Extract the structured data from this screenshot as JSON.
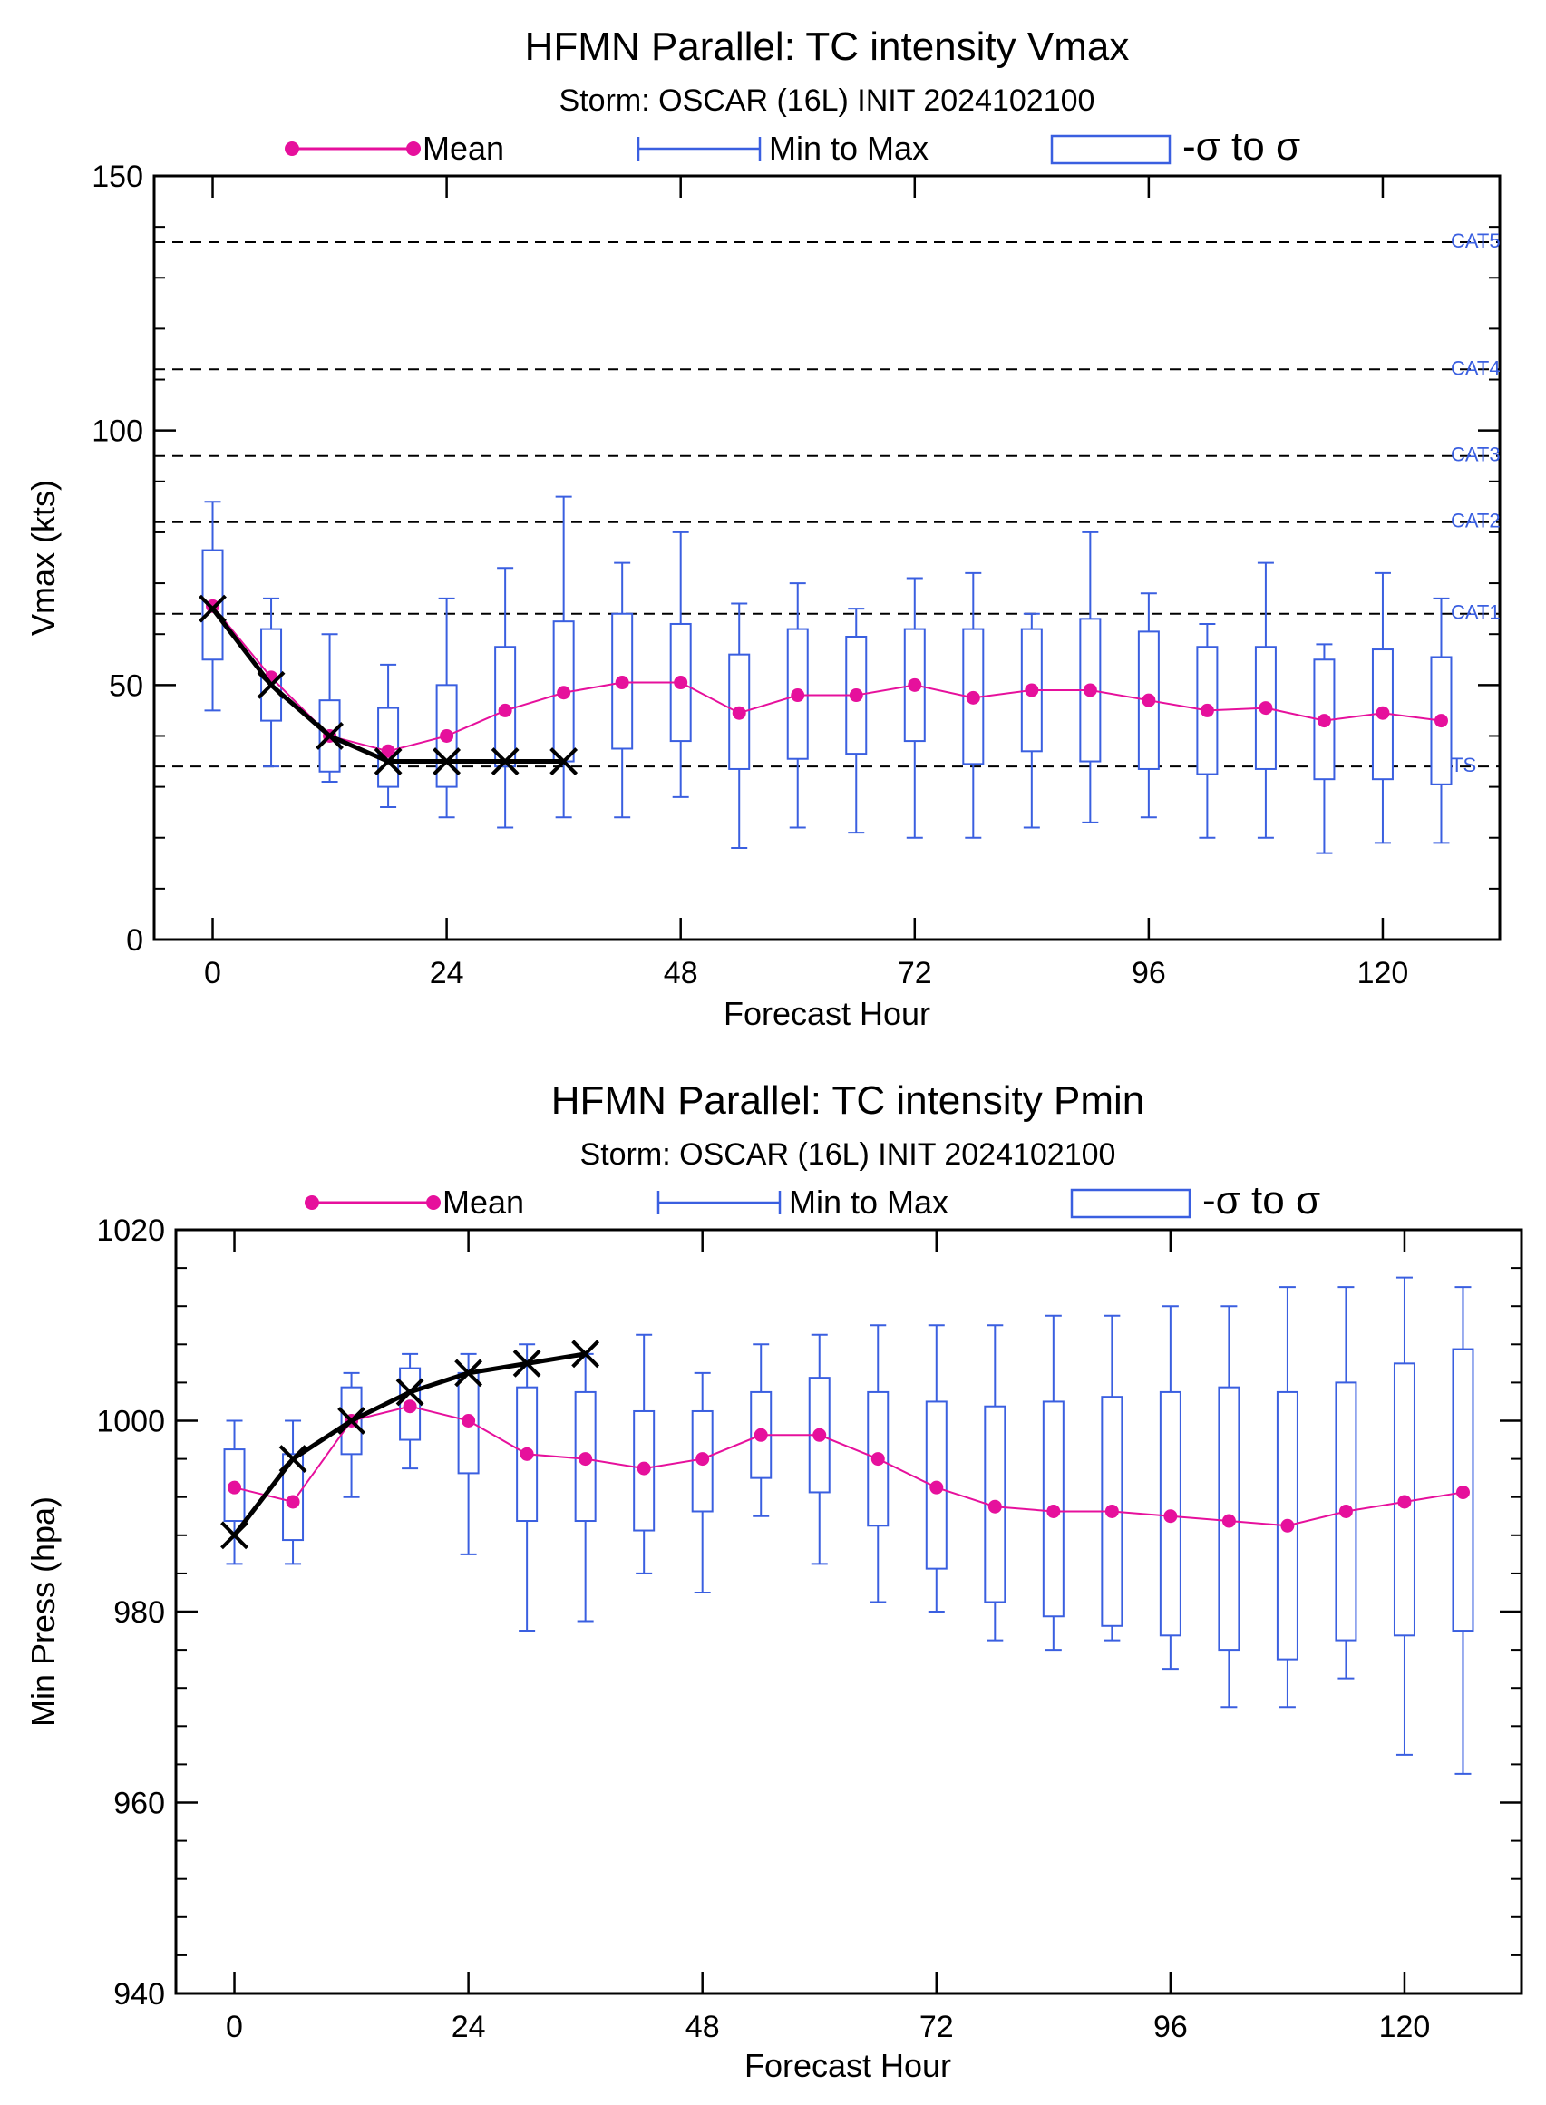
{
  "legend": {
    "mean": "Mean",
    "minmax": "Min to Max",
    "sigma": "-σ to σ"
  },
  "colors": {
    "mean": "#e6109c",
    "box": "#3a5fe0",
    "obs": "#000000",
    "category_text": "#3a5fe0"
  },
  "chart_data": [
    {
      "type": "box",
      "title": "HFMN Parallel: TC intensity Vmax",
      "subtitle": "Storm: OSCAR (16L) INIT 2024102100",
      "xlabel": "Forecast Hour",
      "ylabel": "Vmax (kts)",
      "xlim": [
        -6,
        132
      ],
      "ylim": [
        0,
        150
      ],
      "xticks": [
        0,
        24,
        48,
        72,
        96,
        120
      ],
      "yticks": [
        0,
        50,
        100,
        150
      ],
      "grid": false,
      "legend_position": "top",
      "reference_lines": [
        {
          "label": "CAT5",
          "y": 137
        },
        {
          "label": "CAT4",
          "y": 112
        },
        {
          "label": "CAT3",
          "y": 95
        },
        {
          "label": "CAT2",
          "y": 82
        },
        {
          "label": "CAT1",
          "y": 64
        },
        {
          "label": "TS",
          "y": 34
        }
      ],
      "x": [
        0,
        6,
        12,
        18,
        24,
        30,
        36,
        42,
        48,
        54,
        60,
        66,
        72,
        78,
        84,
        90,
        96,
        102,
        108,
        114,
        120,
        126
      ],
      "mean": [
        65.5,
        51.5,
        40,
        37,
        40,
        45,
        48.5,
        50.5,
        50.5,
        44.5,
        48,
        48,
        50,
        47.5,
        49,
        49,
        47,
        45,
        45.5,
        43,
        44.5,
        43
      ],
      "min": [
        45,
        34,
        31,
        26,
        24,
        22,
        24,
        24,
        28,
        18,
        22,
        21,
        20,
        20,
        22,
        23,
        24,
        20,
        20,
        17,
        19,
        19
      ],
      "max": [
        86,
        67,
        60,
        54,
        67,
        73,
        87,
        74,
        80,
        66,
        70,
        65,
        71,
        72,
        64,
        80,
        68,
        62,
        74,
        58,
        72,
        67
      ],
      "sigma_low": [
        55,
        43,
        33,
        30,
        30,
        34,
        35,
        37.5,
        39,
        33.5,
        35.5,
        36.5,
        39,
        34.5,
        37,
        35,
        33.5,
        32.5,
        33.5,
        31.5,
        31.5,
        30.5
      ],
      "sigma_high": [
        76.5,
        61,
        47,
        45.5,
        50,
        57.5,
        62.5,
        64,
        62,
        56,
        61,
        59.5,
        61,
        61,
        61,
        63,
        60.5,
        57.5,
        57.5,
        55,
        57,
        55.5
      ],
      "observed": {
        "x": [
          0,
          6,
          12,
          18,
          24,
          30,
          36
        ],
        "y": [
          65,
          50,
          40,
          35,
          35,
          35,
          35
        ]
      }
    },
    {
      "type": "box",
      "title": "HFMN Parallel: TC intensity Pmin",
      "subtitle": "Storm: OSCAR (16L) INIT 2024102100",
      "xlabel": "Forecast Hour",
      "ylabel": "Min Press (hpa)",
      "xlim": [
        -6,
        132
      ],
      "ylim": [
        940,
        1020
      ],
      "xticks": [
        0,
        24,
        48,
        72,
        96,
        120
      ],
      "yticks": [
        940,
        960,
        980,
        1000,
        1020
      ],
      "grid": false,
      "legend_position": "top",
      "reference_lines": [],
      "x": [
        0,
        6,
        12,
        18,
        24,
        30,
        36,
        42,
        48,
        54,
        60,
        66,
        72,
        78,
        84,
        90,
        96,
        102,
        108,
        114,
        120,
        126
      ],
      "mean": [
        993,
        991.5,
        1000,
        1001.5,
        1000,
        996.5,
        996,
        995,
        996,
        998.5,
        998.5,
        996,
        993,
        991,
        990.5,
        990.5,
        990,
        989.5,
        989,
        990.5,
        991.5,
        992.5
      ],
      "min": [
        985,
        985,
        992,
        995,
        986,
        978,
        979,
        984,
        982,
        990,
        985,
        981,
        980,
        977,
        976,
        977,
        974,
        970,
        970,
        973,
        965,
        963
      ],
      "max": [
        1000,
        1000,
        1005,
        1007,
        1007,
        1008,
        1007,
        1009,
        1005,
        1008,
        1009,
        1010,
        1010,
        1010,
        1011,
        1011,
        1012,
        1012,
        1014,
        1014,
        1015,
        1014
      ],
      "sigma_low": [
        989.5,
        987.5,
        996.5,
        998,
        994.5,
        989.5,
        989.5,
        988.5,
        990.5,
        994,
        992.5,
        989,
        984.5,
        981,
        979.5,
        978.5,
        977.5,
        976,
        975,
        977,
        977.5,
        978
      ],
      "sigma_high": [
        997,
        996.5,
        1003.5,
        1005.5,
        1005,
        1003.5,
        1003,
        1001,
        1001,
        1003,
        1004.5,
        1003,
        1002,
        1001.5,
        1002,
        1002.5,
        1003,
        1003.5,
        1003,
        1004,
        1006,
        1007.5
      ],
      "observed": {
        "x": [
          0,
          6,
          12,
          18,
          24,
          30,
          36
        ],
        "y": [
          988,
          996,
          1000,
          1003,
          1005,
          1006,
          1007
        ]
      }
    }
  ]
}
